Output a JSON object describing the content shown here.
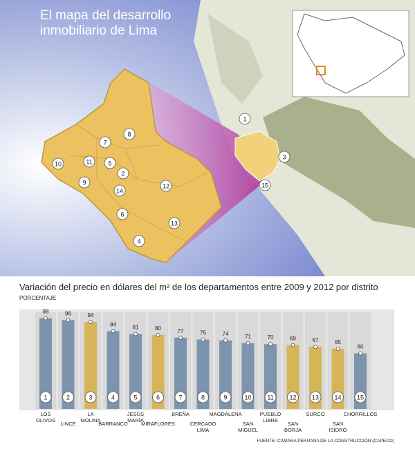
{
  "chart_data": {
    "type": "bar",
    "title": "El mapa del desarrollo inmobiliario de Lima",
    "subtitle": "Variación del precio en dólares del m² de los departamentos entre 2009 y 2012 por distrito",
    "unit_label": "PORCENTAJE",
    "source": "FUENTE: CÁMARA PERUANA DE LA CONSTRUCCIÓN (CAPECO)",
    "markers": [
      "1",
      "2",
      "3",
      "4",
      "5",
      "6",
      "7",
      "8",
      "9",
      "10",
      "11",
      "12",
      "13",
      "14",
      "15"
    ],
    "categories": [
      "LOS OLIVOS",
      "LINCE",
      "LA MOLINA",
      "BARRANCO",
      "JESÚS MARÍA",
      "MIRAFLORES",
      "BREÑA",
      "CERCADO LIMA",
      "MAGDALENA",
      "SAN MIGUEL",
      "PUEBLO LIBRE",
      "SAN BORJA",
      "SURCO",
      "SAN ISIDRO",
      "CHORRILLOS"
    ],
    "values": [
      98,
      96,
      94,
      84,
      81,
      80,
      77,
      75,
      74,
      71,
      70,
      69,
      67,
      65,
      60
    ],
    "colors": [
      "#7d94ae",
      "#7d94ae",
      "#d6b458",
      "#7d94ae",
      "#7d94ae",
      "#d6b458",
      "#7d94ae",
      "#7d94ae",
      "#7d94ae",
      "#7d94ae",
      "#7d94ae",
      "#d6b458",
      "#d6b458",
      "#d6b458",
      "#7d94ae"
    ]
  }
}
